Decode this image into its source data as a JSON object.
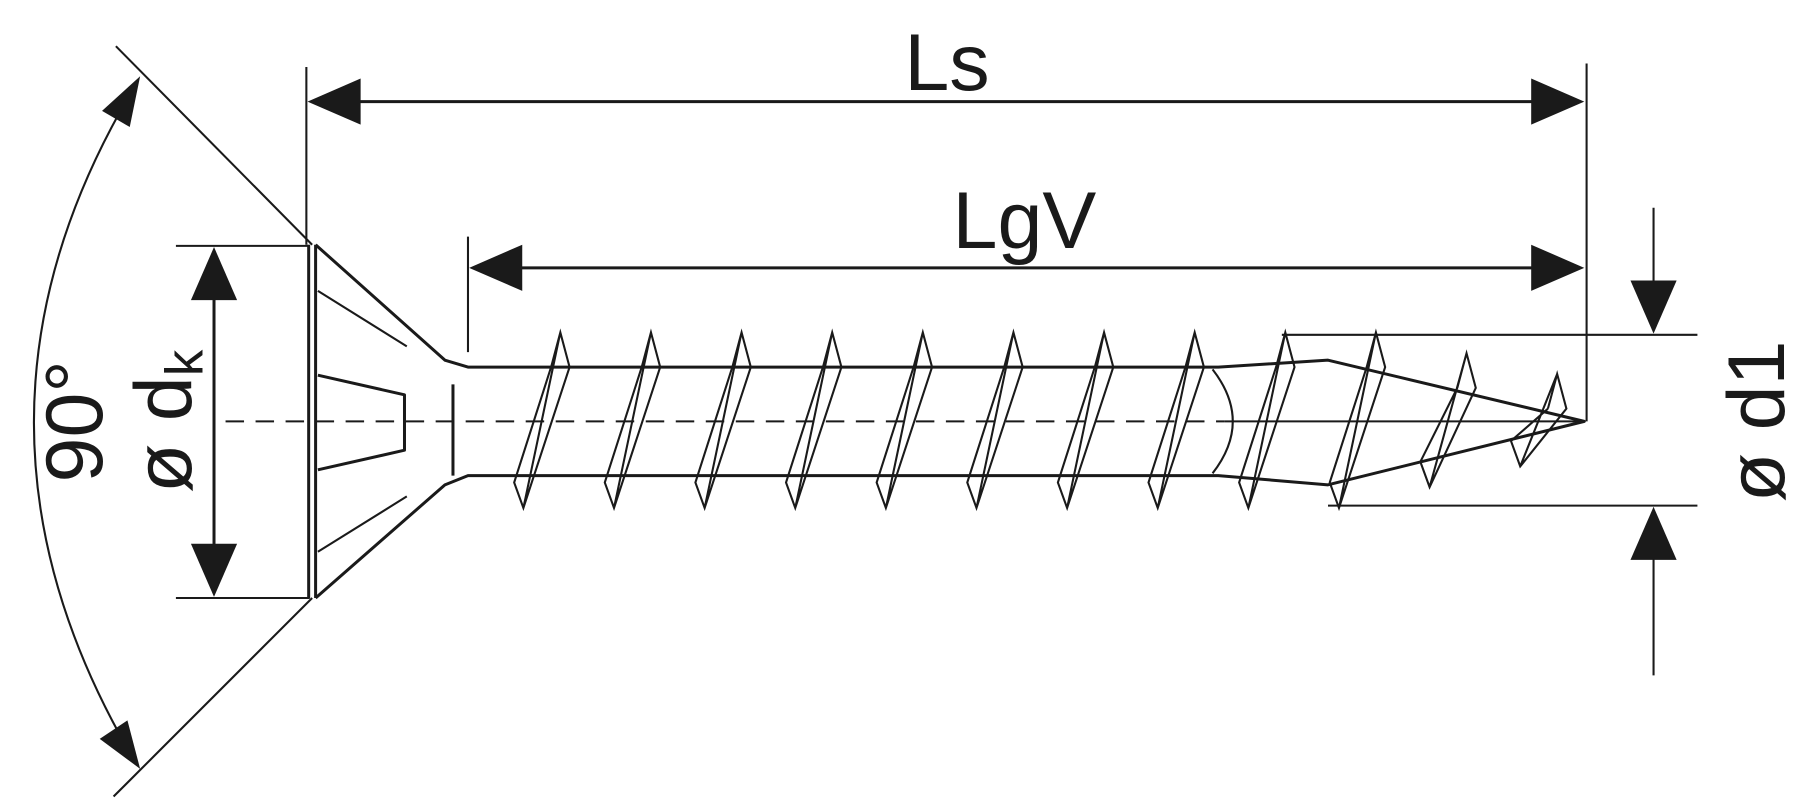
{
  "diagram": {
    "labels": {
      "ls": "Ls",
      "lgv": "LgV",
      "angle": "90°",
      "head_diameter_symbol": "ø d",
      "head_diameter_sub": "k",
      "thread_diameter": "ø d1"
    },
    "colors": {
      "line": "#1a1a1a",
      "background": "#ffffff"
    },
    "thread_turns": 12
  }
}
